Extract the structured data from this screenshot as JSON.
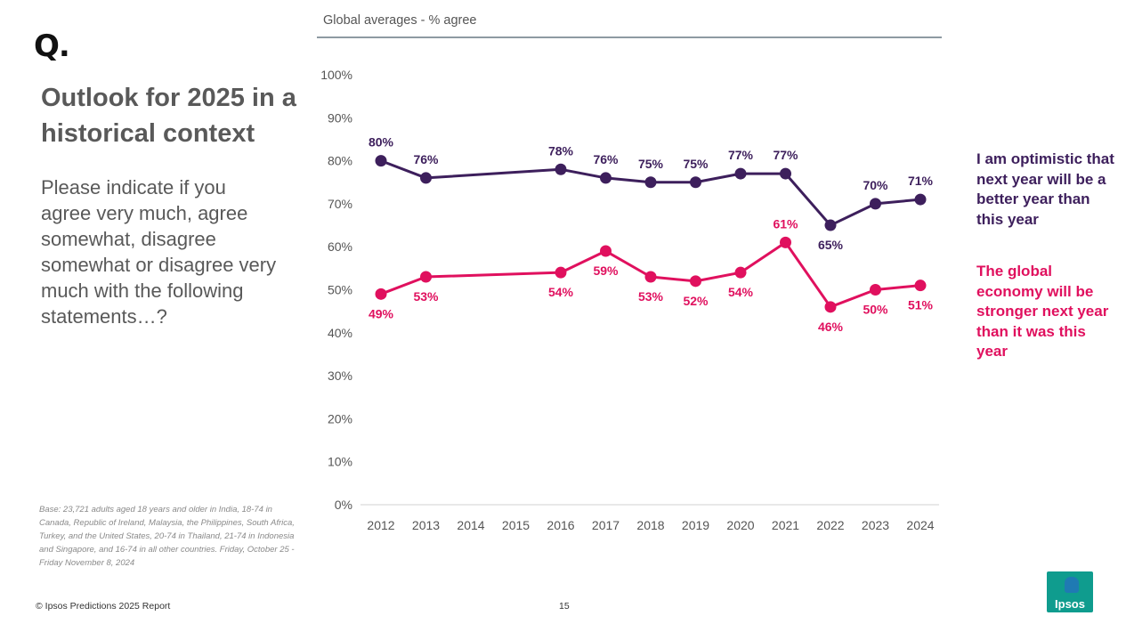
{
  "header": {
    "logo_text": "Q.",
    "title": "Outlook for 2025 in a historical context",
    "question": "Please indicate if you agree very much, agree somewhat, disagree somewhat or disagree very much with the following statements…?",
    "chart_subtitle": "Global averages - % agree"
  },
  "footer": {
    "base_note": "Base: 23,721 adults aged 18 years and older in India, 18-74 in Canada, Republic of Ireland, Malaysia, the Philippines, South Africa, Turkey, and the United States, 20-74 in Thailand, 21-74 in Indonesia and Singapore, and 16-74 in all other countries. Friday, October 25 - Friday November 8, 2024",
    "copyright": "© Ipsos Predictions 2025 Report",
    "page_number": "15",
    "brand_logo": "Ipsos"
  },
  "chart_data": {
    "type": "line",
    "x": [
      "2012",
      "2013",
      "2014",
      "2015",
      "2016",
      "2017",
      "2018",
      "2019",
      "2020",
      "2021",
      "2022",
      "2023",
      "2024"
    ],
    "y_ticks": [
      "0%",
      "10%",
      "20%",
      "30%",
      "40%",
      "50%",
      "60%",
      "70%",
      "80%",
      "90%",
      "100%"
    ],
    "ylim": [
      0,
      100
    ],
    "legend_position": "right",
    "grid": false,
    "series": [
      {
        "name": "I am optimistic that next year will be a better year than this year",
        "color": "#3d1f5c",
        "labels_position": "above",
        "points": [
          {
            "x": "2012",
            "y": 80,
            "label": "80%"
          },
          {
            "x": "2013",
            "y": 76,
            "label": "76%"
          },
          {
            "x": "2016",
            "y": 78,
            "label": "78%"
          },
          {
            "x": "2017",
            "y": 76,
            "label": "76%"
          },
          {
            "x": "2018",
            "y": 75,
            "label": "75%"
          },
          {
            "x": "2019",
            "y": 75,
            "label": "75%"
          },
          {
            "x": "2020",
            "y": 77,
            "label": "77%"
          },
          {
            "x": "2021",
            "y": 77,
            "label": "77%"
          },
          {
            "x": "2022",
            "y": 65,
            "label": "65%"
          },
          {
            "x": "2023",
            "y": 70,
            "label": "70%"
          },
          {
            "x": "2024",
            "y": 71,
            "label": "71%"
          }
        ]
      },
      {
        "name": "The global economy will be stronger next year than it was this year",
        "color": "#e0105e",
        "labels_position": "below",
        "points": [
          {
            "x": "2012",
            "y": 49,
            "label": "49%"
          },
          {
            "x": "2013",
            "y": 53,
            "label": "53%"
          },
          {
            "x": "2016",
            "y": 54,
            "label": "54%"
          },
          {
            "x": "2017",
            "y": 59,
            "label": "59%"
          },
          {
            "x": "2018",
            "y": 53,
            "label": "53%"
          },
          {
            "x": "2019",
            "y": 52,
            "label": "52%"
          },
          {
            "x": "2020",
            "y": 54,
            "label": "54%"
          },
          {
            "x": "2021",
            "y": 61,
            "label": "61%"
          },
          {
            "x": "2022",
            "y": 46,
            "label": "46%"
          },
          {
            "x": "2023",
            "y": 50,
            "label": "50%"
          },
          {
            "x": "2024",
            "y": 51,
            "label": "51%"
          }
        ]
      }
    ]
  }
}
